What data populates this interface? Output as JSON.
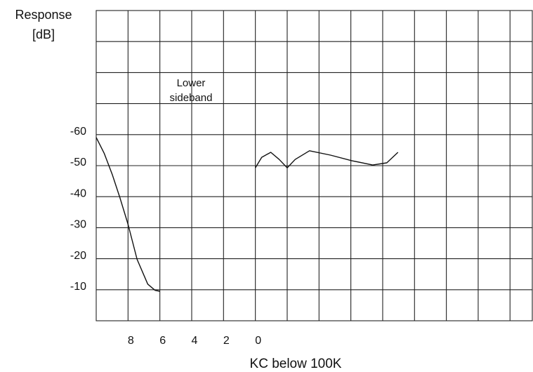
{
  "chart_data": {
    "type": "line",
    "ylabel": [
      "Response",
      "[dB]"
    ],
    "xlabel": "KC below 100K",
    "annotation": [
      "Lower",
      "sideband"
    ],
    "xlim": [
      10,
      -17.4
    ],
    "ylim": [
      0,
      -100
    ],
    "xticks": [
      8,
      6,
      4,
      2,
      0
    ],
    "yticks": [
      -60,
      -50,
      -40,
      -30,
      -20,
      -10
    ],
    "grid": true,
    "series": [
      {
        "color": "#111111",
        "x": [
          10,
          9.5,
          8.98,
          8.5,
          8,
          7.43,
          6.76,
          6.3,
          6
        ],
        "values": [
          -59.1,
          -54,
          -47,
          -39.5,
          -31.1,
          -19.8,
          -11.8,
          -9.8,
          -9.5
        ]
      },
      {
        "color": "#111111",
        "x": [
          0,
          -0.4,
          -0.97,
          -1.5,
          -2,
          -2.5,
          -3.4,
          -4.72,
          -6.05,
          -7.37,
          -8.26,
          -8.96
        ],
        "values": [
          -49.3,
          -52.7,
          -54.3,
          -52,
          -49.3,
          -52,
          -54.8,
          -53.4,
          -51.6,
          -50.2,
          -50.9,
          -54.3
        ]
      }
    ]
  }
}
